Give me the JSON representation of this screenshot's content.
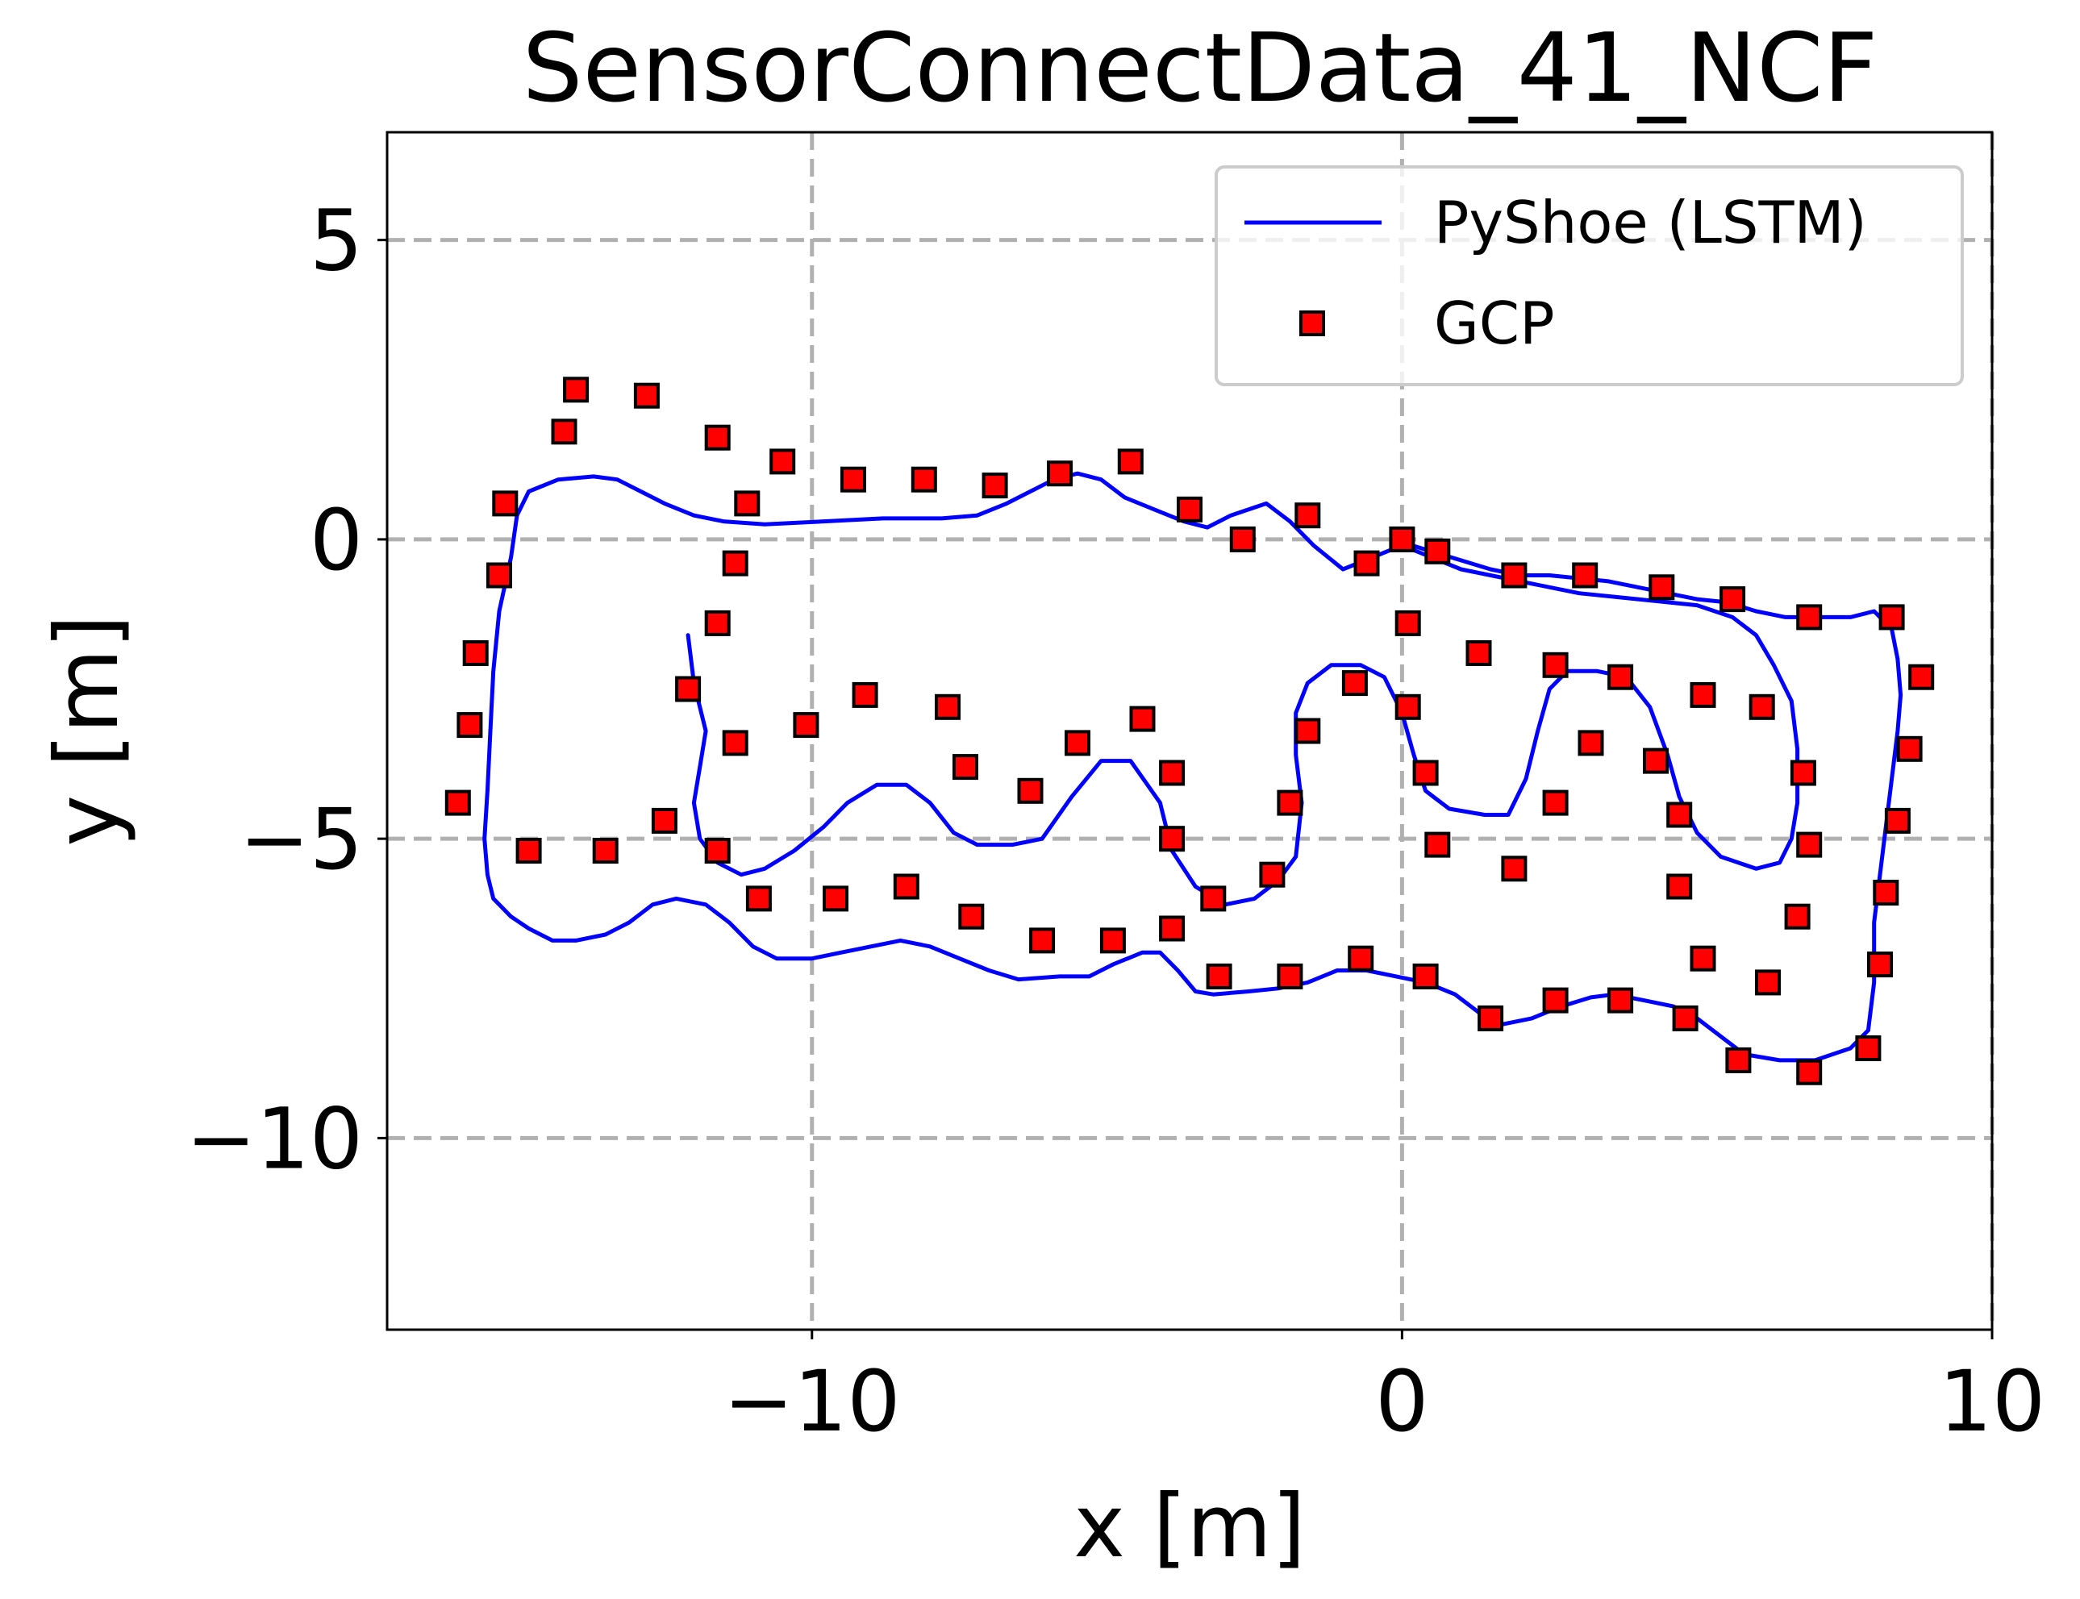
{
  "chart_data": {
    "type": "line",
    "title": "SensorConnectData_41_NCF",
    "xlabel": "x [m]",
    "ylabel": "y [m]",
    "xlim": [
      -17.2,
      10
    ],
    "ylim": [
      -13.2,
      6.8
    ],
    "xticks": [
      -10,
      0,
      10
    ],
    "xtick_labels": [
      "−10",
      "0",
      "10"
    ],
    "yticks": [
      5,
      0,
      -5,
      -10
    ],
    "ytick_labels": [
      "5",
      "0",
      "−5",
      "−10"
    ],
    "grid": true,
    "legend_position": "top-right",
    "series": [
      {
        "name": "PyShoe (LSTM)",
        "kind": "line",
        "color": "#0000ff",
        "points": [
          [
            -12.1,
            -1.6
          ],
          [
            -12.0,
            -2.4
          ],
          [
            -11.8,
            -3.2
          ],
          [
            -11.9,
            -3.8
          ],
          [
            -12.0,
            -4.4
          ],
          [
            -11.9,
            -5.0
          ],
          [
            -11.6,
            -5.4
          ],
          [
            -11.2,
            -5.6
          ],
          [
            -10.8,
            -5.5
          ],
          [
            -10.3,
            -5.2
          ],
          [
            -9.8,
            -4.8
          ],
          [
            -9.4,
            -4.4
          ],
          [
            -8.9,
            -4.1
          ],
          [
            -8.4,
            -4.1
          ],
          [
            -8.0,
            -4.4
          ],
          [
            -7.6,
            -4.9
          ],
          [
            -7.2,
            -5.1
          ],
          [
            -6.6,
            -5.1
          ],
          [
            -6.1,
            -5.0
          ],
          [
            -5.6,
            -4.3
          ],
          [
            -5.1,
            -3.7
          ],
          [
            -4.6,
            -3.7
          ],
          [
            -4.1,
            -4.4
          ],
          [
            -3.9,
            -5.2
          ],
          [
            -3.5,
            -5.8
          ],
          [
            -3.0,
            -6.1
          ],
          [
            -2.5,
            -6.0
          ],
          [
            -2.1,
            -5.7
          ],
          [
            -1.8,
            -5.3
          ],
          [
            -1.7,
            -4.4
          ],
          [
            -1.8,
            -3.6
          ],
          [
            -1.8,
            -2.9
          ],
          [
            -1.6,
            -2.4
          ],
          [
            -1.2,
            -2.1
          ],
          [
            -0.7,
            -2.1
          ],
          [
            -0.3,
            -2.3
          ],
          [
            0.0,
            -2.9
          ],
          [
            0.2,
            -3.6
          ],
          [
            0.4,
            -4.2
          ],
          [
            0.8,
            -4.5
          ],
          [
            1.4,
            -4.6
          ],
          [
            1.8,
            -4.6
          ],
          [
            2.1,
            -4.0
          ],
          [
            2.3,
            -3.2
          ],
          [
            2.5,
            -2.5
          ],
          [
            2.8,
            -2.2
          ],
          [
            3.3,
            -2.2
          ],
          [
            3.8,
            -2.3
          ],
          [
            4.2,
            -2.8
          ],
          [
            4.5,
            -3.6
          ],
          [
            4.7,
            -4.3
          ],
          [
            5.0,
            -4.9
          ],
          [
            5.4,
            -5.3
          ],
          [
            6.0,
            -5.5
          ],
          [
            6.4,
            -5.4
          ],
          [
            6.6,
            -5.0
          ],
          [
            6.7,
            -4.4
          ],
          [
            6.7,
            -3.5
          ],
          [
            6.6,
            -2.7
          ],
          [
            6.3,
            -2.1
          ],
          [
            6.0,
            -1.6
          ],
          [
            5.6,
            -1.3
          ],
          [
            5.0,
            -1.1
          ],
          [
            4.0,
            -1.0
          ],
          [
            3.0,
            -0.9
          ],
          [
            2.0,
            -0.7
          ],
          [
            1.0,
            -0.5
          ],
          [
            0.5,
            -0.3
          ],
          [
            0.0,
            -0.1
          ],
          [
            -0.5,
            -0.3
          ],
          [
            -1.0,
            -0.5
          ],
          [
            -1.5,
            -0.1
          ],
          [
            -1.9,
            0.3
          ],
          [
            -2.3,
            0.6
          ],
          [
            -2.9,
            0.4
          ],
          [
            -3.3,
            0.2
          ],
          [
            -3.7,
            0.3
          ],
          [
            -4.2,
            0.5
          ],
          [
            -4.7,
            0.7
          ],
          [
            -5.1,
            1.0
          ],
          [
            -5.5,
            1.1
          ],
          [
            -5.9,
            1.0
          ],
          [
            -6.3,
            0.8
          ],
          [
            -6.7,
            0.6
          ],
          [
            -7.2,
            0.4
          ],
          [
            -7.8,
            0.35
          ],
          [
            -8.8,
            0.35
          ],
          [
            -9.8,
            0.3
          ],
          [
            -10.8,
            0.25
          ],
          [
            -11.5,
            0.3
          ],
          [
            -12.0,
            0.4
          ],
          [
            -12.5,
            0.6
          ],
          [
            -12.9,
            0.8
          ],
          [
            -13.3,
            1.0
          ],
          [
            -13.7,
            1.05
          ],
          [
            -14.3,
            1.0
          ],
          [
            -14.8,
            0.8
          ],
          [
            -15.0,
            0.4
          ],
          [
            -15.1,
            -0.3
          ],
          [
            -15.3,
            -1.2
          ],
          [
            -15.4,
            -2.2
          ],
          [
            -15.45,
            -3.2
          ],
          [
            -15.5,
            -4.2
          ],
          [
            -15.55,
            -5.0
          ],
          [
            -15.5,
            -5.6
          ],
          [
            -15.4,
            -6.0
          ],
          [
            -15.1,
            -6.3
          ],
          [
            -14.8,
            -6.5
          ],
          [
            -14.4,
            -6.7
          ],
          [
            -14.0,
            -6.7
          ],
          [
            -13.5,
            -6.6
          ],
          [
            -13.1,
            -6.4
          ],
          [
            -12.7,
            -6.1
          ],
          [
            -12.3,
            -6.0
          ],
          [
            -11.8,
            -6.1
          ],
          [
            -11.4,
            -6.4
          ],
          [
            -11.0,
            -6.8
          ],
          [
            -10.6,
            -7.0
          ],
          [
            -10.0,
            -7.0
          ],
          [
            -9.5,
            -6.9
          ],
          [
            -9.0,
            -6.8
          ],
          [
            -8.5,
            -6.7
          ],
          [
            -8.0,
            -6.8
          ],
          [
            -7.5,
            -7.0
          ],
          [
            -7.0,
            -7.2
          ],
          [
            -6.5,
            -7.35
          ],
          [
            -5.8,
            -7.3
          ],
          [
            -5.3,
            -7.3
          ],
          [
            -4.9,
            -7.1
          ],
          [
            -4.4,
            -6.9
          ],
          [
            -4.1,
            -6.9
          ],
          [
            -3.8,
            -7.2
          ],
          [
            -3.5,
            -7.55
          ],
          [
            -3.2,
            -7.6
          ],
          [
            -2.6,
            -7.55
          ],
          [
            -2.1,
            -7.5
          ],
          [
            -1.6,
            -7.4
          ],
          [
            -1.1,
            -7.2
          ],
          [
            -0.6,
            -7.2
          ],
          [
            -0.1,
            -7.3
          ],
          [
            0.4,
            -7.4
          ],
          [
            0.9,
            -7.6
          ],
          [
            1.3,
            -7.9
          ],
          [
            1.7,
            -8.1
          ],
          [
            2.2,
            -8.0
          ],
          [
            2.7,
            -7.8
          ],
          [
            3.2,
            -7.65
          ],
          [
            3.6,
            -7.6
          ],
          [
            4.1,
            -7.7
          ],
          [
            4.6,
            -7.8
          ],
          [
            5.0,
            -8.0
          ],
          [
            5.4,
            -8.3
          ],
          [
            5.8,
            -8.6
          ],
          [
            6.4,
            -8.7
          ],
          [
            7.0,
            -8.7
          ],
          [
            7.6,
            -8.5
          ],
          [
            7.9,
            -8.2
          ],
          [
            8.0,
            -7.4
          ],
          [
            8.0,
            -6.4
          ],
          [
            8.1,
            -5.6
          ],
          [
            8.2,
            -4.8
          ],
          [
            8.3,
            -4.0
          ],
          [
            8.4,
            -3.2
          ],
          [
            8.45,
            -2.6
          ],
          [
            8.4,
            -2.0
          ],
          [
            8.3,
            -1.5
          ],
          [
            8.0,
            -1.2
          ],
          [
            7.6,
            -1.3
          ],
          [
            7.1,
            -1.3
          ],
          [
            6.5,
            -1.3
          ],
          [
            6.0,
            -1.2
          ],
          [
            5.5,
            -1.05
          ],
          [
            5.0,
            -1.0
          ],
          [
            4.5,
            -0.9
          ],
          [
            4.0,
            -0.8
          ],
          [
            3.5,
            -0.7
          ],
          [
            3.0,
            -0.65
          ],
          [
            2.5,
            -0.6
          ],
          [
            2.0,
            -0.6
          ],
          [
            1.5,
            -0.5
          ],
          [
            1.0,
            -0.35
          ],
          [
            0.5,
            -0.2
          ],
          [
            0.0,
            -0.05
          ]
        ]
      },
      {
        "name": "GCP",
        "kind": "scatter",
        "color": "#ff0000",
        "edge_color": "#000000",
        "points": [
          [
            -14.0,
            2.5
          ],
          [
            -12.8,
            2.4
          ],
          [
            -14.2,
            1.8
          ],
          [
            -11.6,
            1.7
          ],
          [
            -10.5,
            1.3
          ],
          [
            -9.3,
            1.0
          ],
          [
            -8.1,
            1.0
          ],
          [
            -6.9,
            0.9
          ],
          [
            -5.8,
            1.1
          ],
          [
            -4.6,
            1.3
          ],
          [
            -3.6,
            0.5
          ],
          [
            -2.7,
            0.0
          ],
          [
            -1.6,
            0.4
          ],
          [
            -0.6,
            -0.4
          ],
          [
            0.0,
            0.0
          ],
          [
            0.6,
            -0.2
          ],
          [
            1.9,
            -0.6
          ],
          [
            3.1,
            -0.6
          ],
          [
            4.4,
            -0.8
          ],
          [
            5.6,
            -1.0
          ],
          [
            6.9,
            -1.3
          ],
          [
            8.3,
            -1.3
          ],
          [
            -15.2,
            0.6
          ],
          [
            -11.1,
            0.6
          ],
          [
            -11.3,
            -0.4
          ],
          [
            -15.3,
            -0.6
          ],
          [
            -15.7,
            -1.9
          ],
          [
            -11.6,
            -1.4
          ],
          [
            -12.1,
            -2.5
          ],
          [
            -15.8,
            -3.1
          ],
          [
            -11.3,
            -3.4
          ],
          [
            -10.1,
            -3.1
          ],
          [
            -9.1,
            -2.6
          ],
          [
            -7.7,
            -2.8
          ],
          [
            -7.4,
            -3.8
          ],
          [
            -5.5,
            -3.4
          ],
          [
            -4.4,
            -3.0
          ],
          [
            -6.3,
            -4.2
          ],
          [
            -3.9,
            -3.9
          ],
          [
            -3.9,
            -5.0
          ],
          [
            -1.9,
            -4.4
          ],
          [
            -1.6,
            -3.2
          ],
          [
            -0.8,
            -2.4
          ],
          [
            0.1,
            -2.8
          ],
          [
            0.1,
            -1.4
          ],
          [
            0.4,
            -3.9
          ],
          [
            0.6,
            -5.1
          ],
          [
            1.3,
            -1.9
          ],
          [
            1.9,
            -5.5
          ],
          [
            2.6,
            -4.4
          ],
          [
            2.6,
            -2.1
          ],
          [
            3.2,
            -3.4
          ],
          [
            3.7,
            -2.3
          ],
          [
            4.3,
            -3.7
          ],
          [
            4.7,
            -4.6
          ],
          [
            4.7,
            -5.8
          ],
          [
            5.1,
            -2.6
          ],
          [
            5.1,
            -7.0
          ],
          [
            6.1,
            -2.8
          ],
          [
            6.2,
            -7.4
          ],
          [
            6.7,
            -6.3
          ],
          [
            6.8,
            -3.9
          ],
          [
            6.9,
            -5.1
          ],
          [
            8.8,
            -2.3
          ],
          [
            8.6,
            -3.5
          ],
          [
            8.4,
            -4.7
          ],
          [
            8.2,
            -5.9
          ],
          [
            8.1,
            -7.1
          ],
          [
            7.9,
            -8.5
          ],
          [
            -16.0,
            -4.4
          ],
          [
            -14.8,
            -5.2
          ],
          [
            -13.5,
            -5.2
          ],
          [
            -12.5,
            -4.7
          ],
          [
            -11.6,
            -5.2
          ],
          [
            -10.9,
            -6.0
          ],
          [
            -9.6,
            -6.0
          ],
          [
            -8.4,
            -5.8
          ],
          [
            -7.3,
            -6.3
          ],
          [
            -6.1,
            -6.7
          ],
          [
            -4.9,
            -6.7
          ],
          [
            -3.9,
            -6.5
          ],
          [
            -3.2,
            -6.0
          ],
          [
            -3.1,
            -7.3
          ],
          [
            -2.2,
            -5.6
          ],
          [
            -1.9,
            -7.3
          ],
          [
            -0.7,
            -7.0
          ],
          [
            0.4,
            -7.3
          ],
          [
            1.5,
            -8.0
          ],
          [
            2.6,
            -7.7
          ],
          [
            3.7,
            -7.7
          ],
          [
            4.8,
            -8.0
          ],
          [
            5.7,
            -8.7
          ],
          [
            6.9,
            -8.9
          ]
        ]
      }
    ]
  }
}
